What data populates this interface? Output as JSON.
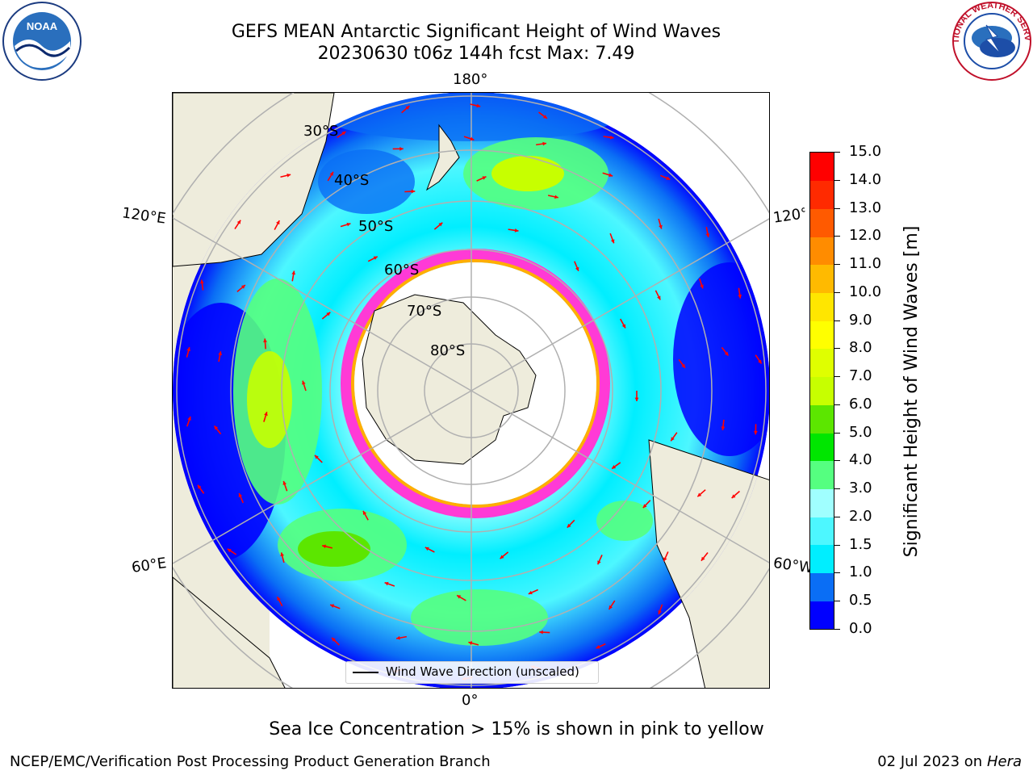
{
  "title": {
    "line1": "GEFS MEAN Antarctic Significant Height of Wind Waves",
    "line2": "20230630 t06z 144h fcst   Max: 7.49"
  },
  "map": {
    "projection": "south-polar-stereographic",
    "meridian_labels": {
      "top": "180°",
      "bottom": "0°",
      "left_upper": "120°E",
      "left_lower": "60°E",
      "right_upper": "120°",
      "right_lower": "60°W"
    },
    "parallel_labels": [
      "30°S",
      "40°S",
      "50°S",
      "60°S",
      "70°S",
      "80°S"
    ],
    "legend_label": "Wind Wave Direction (unscaled)",
    "land_color": "#eeecdc",
    "ocean_low_color": "#0000ff",
    "sea_ice_colors": [
      "#ff3ad6",
      "#ffae00",
      "#ffff66"
    ],
    "arrow_color": "#ff0000"
  },
  "colorbar": {
    "title": "Significant Height of Wind Waves [m]",
    "ticks": [
      "0.0",
      "0.5",
      "1.0",
      "1.5",
      "2.0",
      "3.0",
      "4.0",
      "5.0",
      "6.0",
      "7.0",
      "8.0",
      "9.0",
      "10.0",
      "11.0",
      "12.0",
      "13.0",
      "14.0",
      "15.0"
    ],
    "colors": [
      "#0000ff",
      "#0a6ef5",
      "#00eeff",
      "#4df7ff",
      "#a0ffff",
      "#55ff80",
      "#00e600",
      "#5ce600",
      "#c7ff00",
      "#dfff00",
      "#ffff00",
      "#ffe600",
      "#ffba00",
      "#ff8c00",
      "#ff5a00",
      "#ff2a00",
      "#ff0000"
    ]
  },
  "footer": {
    "note": "Sea Ice Concentration > 15% is shown in pink to yellow",
    "left": "NCEP/EMC/Verification Post Processing Product Generation Branch",
    "right_date": "02 Jul 2023 on ",
    "right_machine": "Hera"
  },
  "logos": {
    "noaa_text": "NOAA",
    "nws_text": "NATIONAL WEATHER SERVICE"
  }
}
